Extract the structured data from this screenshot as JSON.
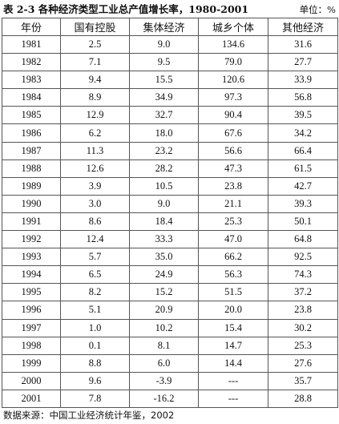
{
  "title": "表 2-3  各种经济类型工业总产值增长率，1980-2001",
  "unit": "单位：%",
  "table": {
    "headers": [
      "年份",
      "国有控股",
      "集体经济",
      "城乡个体",
      "其他经济"
    ],
    "rows": [
      [
        "1981",
        "2.5",
        "9.0",
        "134.6",
        "31.6"
      ],
      [
        "1982",
        "7.1",
        "9.5",
        "79.0",
        "27.7"
      ],
      [
        "1983",
        "9.4",
        "15.5",
        "120.6",
        "33.9"
      ],
      [
        "1984",
        "8.9",
        "34.9",
        "97.3",
        "56.8"
      ],
      [
        "1985",
        "12.9",
        "32.7",
        "90.4",
        "39.5"
      ],
      [
        "1986",
        "6.2",
        "18.0",
        "67.6",
        "34.2"
      ],
      [
        "1987",
        "11.3",
        "23.2",
        "56.6",
        "66.4"
      ],
      [
        "1988",
        "12.6",
        "28.2",
        "47.3",
        "61.5"
      ],
      [
        "1989",
        "3.9",
        "10.5",
        "23.8",
        "42.7"
      ],
      [
        "1990",
        "3.0",
        "9.0",
        "21.1",
        "39.3"
      ],
      [
        "1991",
        "8.6",
        "18.4",
        "25.3",
        "50.1"
      ],
      [
        "1992",
        "12.4",
        "33.3",
        "47.0",
        "64.8"
      ],
      [
        "1993",
        "5.7",
        "35.0",
        "66.2",
        "92.5"
      ],
      [
        "1994",
        "6.5",
        "24.9",
        "56.3",
        "74.3"
      ],
      [
        "1995",
        "8.2",
        "15.2",
        "51.5",
        "37.2"
      ],
      [
        "1996",
        "5.1",
        "20.9",
        "20.0",
        "23.8"
      ],
      [
        "1997",
        "1.0",
        "10.2",
        "15.4",
        "30.2"
      ],
      [
        "1998",
        "0.1",
        "8.1",
        "14.7",
        "25.3"
      ],
      [
        "1999",
        "8.8",
        "6.0",
        "14.4",
        "27.6"
      ],
      [
        "2000",
        "9.6",
        "-3.9",
        "---",
        "35.7"
      ],
      [
        "2001",
        "7.8",
        "-16.2",
        "---",
        "28.8"
      ]
    ]
  },
  "source": "数据来源：中国工业经济统计年鉴，2002"
}
